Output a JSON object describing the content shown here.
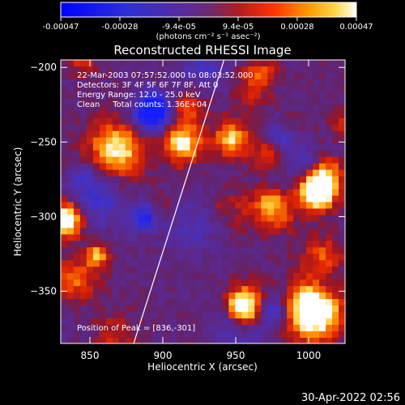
{
  "chart_data": {
    "type": "heatmap",
    "title": "Reconstructed RHESSI Image",
    "xlabel": "Heliocentric X (arcsec)",
    "ylabel": "Heliocentric Y (arcsec)",
    "xlim": [
      830,
      1025
    ],
    "ylim": [
      -385,
      -195
    ],
    "x_ticks": [
      850,
      900,
      950,
      1000
    ],
    "y_ticks": [
      -200,
      -250,
      -300,
      -350
    ],
    "colorbar": {
      "min": -0.00047,
      "max": 0.00047,
      "tick_labels": [
        "-0.00047",
        "-0.00028",
        "-9.4e-05",
        "9.4e-05",
        "0.00028",
        "0.00047"
      ],
      "unit_label": "(photons cm⁻² s⁻¹ asec⁻²)"
    },
    "annotations": [
      "22-Mar-2003 07:57:52.000 to 08:03:52.000",
      "Detectors: 3F 4F 5F 6F 7F 8F, Att 0",
      "Energy Range: 12.0 - 25.0 keV",
      "Clean     Total counts: 1.36E+04",
      "Position of Peak = [836,-301]"
    ],
    "peak": {
      "x": 836,
      "y": -301
    },
    "limb_line": {
      "x": [
        880,
        942
      ],
      "y": [
        -385,
        -195
      ]
    },
    "grid": false
  },
  "footer": {
    "timestamp": "30-Apr-2022 02:56"
  }
}
